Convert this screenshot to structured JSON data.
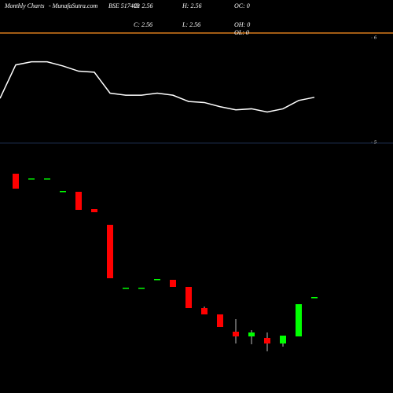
{
  "chart_data": [
    {
      "type": "line",
      "categories": [
        null,
        null,
        null,
        null,
        null,
        null,
        null,
        null,
        null,
        null,
        null,
        null,
        null,
        null,
        null,
        null,
        null,
        null,
        null,
        null,
        null
      ],
      "values": [
        5.42,
        5.74,
        5.77,
        5.77,
        5.73,
        5.68,
        5.67,
        5.47,
        5.45,
        5.45,
        5.47,
        5.45,
        5.39,
        5.38,
        5.34,
        5.31,
        5.32,
        5.29,
        5.32,
        5.4,
        5.43
      ],
      "color": "#ffffff",
      "ylim": [
        5,
        6
      ],
      "yticks": [
        6,
        5
      ]
    },
    {
      "type": "candlestick",
      "title": "Monthly Charts",
      "source": "- MunafaSutra.com",
      "symbol": "BSE 517403",
      "stats": [
        "O: 2.56",
        "H: 2.56",
        "OC: 0",
        "C: 2.56",
        "L: 2.56",
        "OH: 0",
        "OL: 0"
      ],
      "categories": [
        null,
        null,
        null,
        null,
        null,
        null,
        null,
        null,
        null,
        null,
        null,
        null,
        null,
        null,
        null,
        null,
        null,
        null,
        null,
        null,
        null
      ],
      "open": [
        null,
        5.7,
        5.58,
        5.58,
        5.26,
        5.24,
        4.8,
        4.4,
        2.8,
        2.8,
        3.02,
        3.0,
        2.82,
        2.28,
        2.12,
        1.68,
        1.56,
        1.52,
        1.38,
        1.56,
        2.56
      ],
      "high": [
        null,
        5.7,
        5.58,
        5.58,
        5.26,
        5.24,
        4.8,
        4.4,
        2.8,
        2.8,
        3.02,
        3.0,
        2.82,
        2.32,
        2.12,
        2.0,
        1.72,
        1.66,
        1.58,
        2.38,
        2.56
      ],
      "low": [
        null,
        5.32,
        5.58,
        5.58,
        5.26,
        4.78,
        4.72,
        3.04,
        2.8,
        2.8,
        3.02,
        2.82,
        2.28,
        2.12,
        1.8,
        1.38,
        1.36,
        1.18,
        1.3,
        1.56,
        2.56
      ],
      "close": [
        null,
        5.32,
        5.58,
        5.58,
        5.26,
        4.78,
        4.72,
        3.04,
        2.8,
        2.8,
        3.02,
        2.82,
        2.28,
        2.12,
        1.8,
        1.56,
        1.66,
        1.38,
        1.58,
        2.38,
        2.56
      ],
      "up_color": "#00ff00",
      "down_color": "#ff0000",
      "ylim": [
        1,
        6
      ]
    }
  ]
}
